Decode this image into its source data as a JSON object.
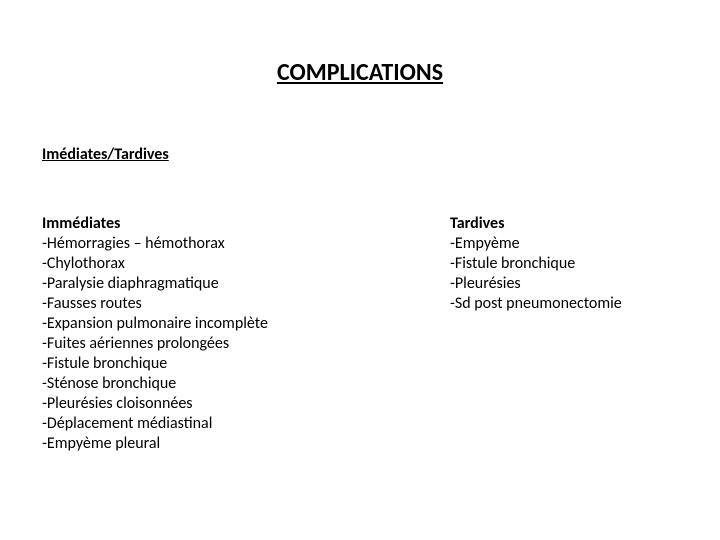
{
  "title": "COMPLICATIONS",
  "subtitle": "Imédiates/Tardives",
  "left": {
    "heading": "Immédiates",
    "items": [
      "-Hémorragies – hémothorax",
      "-Chylothorax",
      "-Paralysie diaphragmatique",
      "-Fausses routes",
      "-Expansion pulmonaire incomplète",
      "-Fuites aériennes prolongées",
      "-Fistule bronchique",
      "-Sténose bronchique",
      "-Pleurésies cloisonnées",
      "-Déplacement médiastinal",
      "-Empyème pleural"
    ]
  },
  "right": {
    "heading": "Tardives",
    "items": [
      "-Empyème",
      "-Fistule bronchique",
      "-Pleurésies",
      "-Sd post pneumonectomie"
    ]
  },
  "colors": {
    "background": "#ffffff",
    "text": "#000000"
  },
  "typography": {
    "title_fontsize": 24,
    "subtitle_fontsize": 16,
    "body_fontsize": 16,
    "font_family": "Calibri"
  }
}
